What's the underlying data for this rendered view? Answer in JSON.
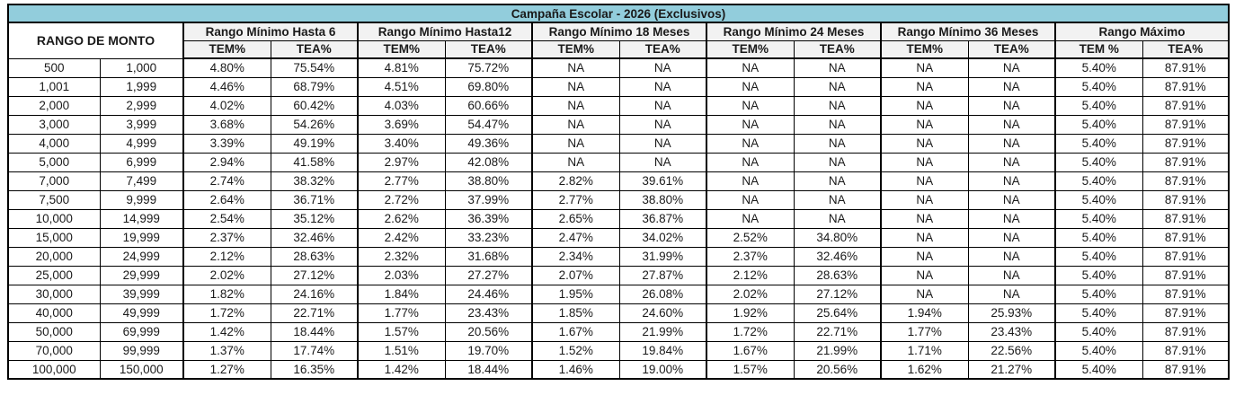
{
  "title": "Campaña Escolar - 2026 (Exclusivos)",
  "colors": {
    "title_bg": "#92CDDC",
    "header_bg": "#F2F2F2",
    "border": "#000000"
  },
  "table": {
    "row_header_label": "RANGO DE MONTO",
    "groups": [
      {
        "label": "Rango Mínimo Hasta 6",
        "sub": [
          "TEM%",
          "TEA%"
        ]
      },
      {
        "label": "Rango Mínimo Hasta12",
        "sub": [
          "TEM%",
          "TEA%"
        ]
      },
      {
        "label": "Rango Mínimo 18 Meses",
        "sub": [
          "TEM%",
          "TEA%"
        ]
      },
      {
        "label": "Rango Mínimo 24 Meses",
        "sub": [
          "TEM%",
          "TEA%"
        ]
      },
      {
        "label": "Rango Mínimo 36 Meses",
        "sub": [
          "TEM%",
          "TEA%"
        ]
      },
      {
        "label": "Rango Máximo",
        "sub": [
          "TEM %",
          "TEA%"
        ]
      }
    ],
    "rows": [
      [
        "500",
        "1,000",
        "4.80%",
        "75.54%",
        "4.81%",
        "75.72%",
        "NA",
        "NA",
        "NA",
        "NA",
        "NA",
        "NA",
        "5.40%",
        "87.91%"
      ],
      [
        "1,001",
        "1,999",
        "4.46%",
        "68.79%",
        "4.51%",
        "69.80%",
        "NA",
        "NA",
        "NA",
        "NA",
        "NA",
        "NA",
        "5.40%",
        "87.91%"
      ],
      [
        "2,000",
        "2,999",
        "4.02%",
        "60.42%",
        "4.03%",
        "60.66%",
        "NA",
        "NA",
        "NA",
        "NA",
        "NA",
        "NA",
        "5.40%",
        "87.91%"
      ],
      [
        "3,000",
        "3,999",
        "3.68%",
        "54.26%",
        "3.69%",
        "54.47%",
        "NA",
        "NA",
        "NA",
        "NA",
        "NA",
        "NA",
        "5.40%",
        "87.91%"
      ],
      [
        "4,000",
        "4,999",
        "3.39%",
        "49.19%",
        "3.40%",
        "49.36%",
        "NA",
        "NA",
        "NA",
        "NA",
        "NA",
        "NA",
        "5.40%",
        "87.91%"
      ],
      [
        "5,000",
        "6,999",
        "2.94%",
        "41.58%",
        "2.97%",
        "42.08%",
        "NA",
        "NA",
        "NA",
        "NA",
        "NA",
        "NA",
        "5.40%",
        "87.91%"
      ],
      [
        "7,000",
        "7,499",
        "2.74%",
        "38.32%",
        "2.77%",
        "38.80%",
        "2.82%",
        "39.61%",
        "NA",
        "NA",
        "NA",
        "NA",
        "5.40%",
        "87.91%"
      ],
      [
        "7,500",
        "9,999",
        "2.64%",
        "36.71%",
        "2.72%",
        "37.99%",
        "2.77%",
        "38.80%",
        "NA",
        "NA",
        "NA",
        "NA",
        "5.40%",
        "87.91%"
      ],
      [
        "10,000",
        "14,999",
        "2.54%",
        "35.12%",
        "2.62%",
        "36.39%",
        "2.65%",
        "36.87%",
        "NA",
        "NA",
        "NA",
        "NA",
        "5.40%",
        "87.91%"
      ],
      [
        "15,000",
        "19,999",
        "2.37%",
        "32.46%",
        "2.42%",
        "33.23%",
        "2.47%",
        "34.02%",
        "2.52%",
        "34.80%",
        "NA",
        "NA",
        "5.40%",
        "87.91%"
      ],
      [
        "20,000",
        "24,999",
        "2.12%",
        "28.63%",
        "2.32%",
        "31.68%",
        "2.34%",
        "31.99%",
        "2.37%",
        "32.46%",
        "NA",
        "NA",
        "5.40%",
        "87.91%"
      ],
      [
        "25,000",
        "29,999",
        "2.02%",
        "27.12%",
        "2.03%",
        "27.27%",
        "2.07%",
        "27.87%",
        "2.12%",
        "28.63%",
        "NA",
        "NA",
        "5.40%",
        "87.91%"
      ],
      [
        "30,000",
        "39,999",
        "1.82%",
        "24.16%",
        "1.84%",
        "24.46%",
        "1.95%",
        "26.08%",
        "2.02%",
        "27.12%",
        "NA",
        "NA",
        "5.40%",
        "87.91%"
      ],
      [
        "40,000",
        "49,999",
        "1.72%",
        "22.71%",
        "1.77%",
        "23.43%",
        "1.85%",
        "24.60%",
        "1.92%",
        "25.64%",
        "1.94%",
        "25.93%",
        "5.40%",
        "87.91%"
      ],
      [
        "50,000",
        "69,999",
        "1.42%",
        "18.44%",
        "1.57%",
        "20.56%",
        "1.67%",
        "21.99%",
        "1.72%",
        "22.71%",
        "1.77%",
        "23.43%",
        "5.40%",
        "87.91%"
      ],
      [
        "70,000",
        "99,999",
        "1.37%",
        "17.74%",
        "1.51%",
        "19.70%",
        "1.52%",
        "19.84%",
        "1.67%",
        "21.99%",
        "1.71%",
        "22.56%",
        "5.40%",
        "87.91%"
      ],
      [
        "100,000",
        "150,000",
        "1.27%",
        "16.35%",
        "1.42%",
        "18.44%",
        "1.46%",
        "19.00%",
        "1.57%",
        "20.56%",
        "1.62%",
        "21.27%",
        "5.40%",
        "87.91%"
      ]
    ]
  }
}
